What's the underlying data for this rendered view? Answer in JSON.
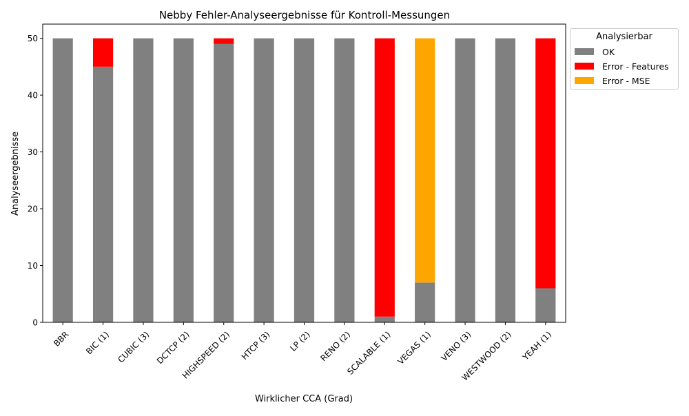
{
  "chart_data": {
    "type": "bar",
    "stacked": true,
    "title": "Nebby Fehler-Analyseergebnisse für Kontroll-Messungen",
    "xlabel": "Wirklicher CCA (Grad)",
    "ylabel": "Analyseergebnisse",
    "ylim": [
      0,
      52.5
    ],
    "yticks": [
      0,
      10,
      20,
      30,
      40,
      50
    ],
    "grid": false,
    "legend_title": "Analysierbar",
    "legend_position": "outside top-right",
    "categories": [
      "BBR",
      "BIC (1)",
      "CUBIC (3)",
      "DCTCP (2)",
      "HIGHSPEED (2)",
      "HTCP (3)",
      "LP (2)",
      "RENO (2)",
      "SCALABLE (1)",
      "VEGAS (1)",
      "VENO (3)",
      "WESTWOOD (2)",
      "YEAH (1)"
    ],
    "series": [
      {
        "name": "OK",
        "color": "#808080",
        "values": [
          50,
          45,
          50,
          50,
          49,
          50,
          50,
          50,
          1,
          7,
          50,
          50,
          6
        ]
      },
      {
        "name": "Error - Features",
        "color": "#ff0000",
        "values": [
          0,
          5,
          0,
          0,
          1,
          0,
          0,
          0,
          49,
          0,
          0,
          0,
          44
        ]
      },
      {
        "name": "Error - MSE",
        "color": "#ffa500",
        "values": [
          0,
          0,
          0,
          0,
          0,
          0,
          0,
          0,
          0,
          43,
          0,
          0,
          0
        ]
      }
    ]
  }
}
